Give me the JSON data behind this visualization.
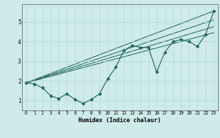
{
  "xlabel": "Humidex (Indice chaleur)",
  "bg_color": "#ceeaea",
  "line_color": "#276b62",
  "grid_color": "#b0d8d8",
  "xlim": [
    -0.5,
    23.5
  ],
  "ylim": [
    0.5,
    5.9
  ],
  "yticks": [
    1,
    2,
    3,
    4,
    5
  ],
  "xticks": [
    0,
    1,
    2,
    3,
    4,
    5,
    6,
    7,
    8,
    9,
    10,
    11,
    12,
    13,
    14,
    15,
    16,
    17,
    18,
    19,
    20,
    21,
    22,
    23
  ],
  "series": [
    [
      0,
      1.9
    ],
    [
      1,
      1.85
    ],
    [
      2,
      1.65
    ],
    [
      3,
      1.25
    ],
    [
      4,
      1.1
    ],
    [
      5,
      1.35
    ],
    [
      6,
      1.05
    ],
    [
      7,
      0.85
    ],
    [
      8,
      1.05
    ],
    [
      9,
      1.35
    ],
    [
      10,
      2.1
    ],
    [
      11,
      2.7
    ],
    [
      12,
      3.55
    ],
    [
      13,
      3.8
    ],
    [
      14,
      3.7
    ],
    [
      15,
      3.7
    ],
    [
      16,
      2.45
    ],
    [
      17,
      3.45
    ],
    [
      18,
      4.0
    ],
    [
      19,
      4.1
    ],
    [
      20,
      4.0
    ],
    [
      21,
      3.75
    ],
    [
      22,
      4.35
    ],
    [
      23,
      5.55
    ]
  ],
  "trend_lines": [
    [
      [
        0,
        1.9
      ],
      [
        23,
        5.55
      ]
    ],
    [
      [
        0,
        1.9
      ],
      [
        23,
        5.1
      ]
    ],
    [
      [
        0,
        1.9
      ],
      [
        23,
        4.75
      ]
    ],
    [
      [
        0,
        1.9
      ],
      [
        23,
        4.45
      ]
    ]
  ]
}
